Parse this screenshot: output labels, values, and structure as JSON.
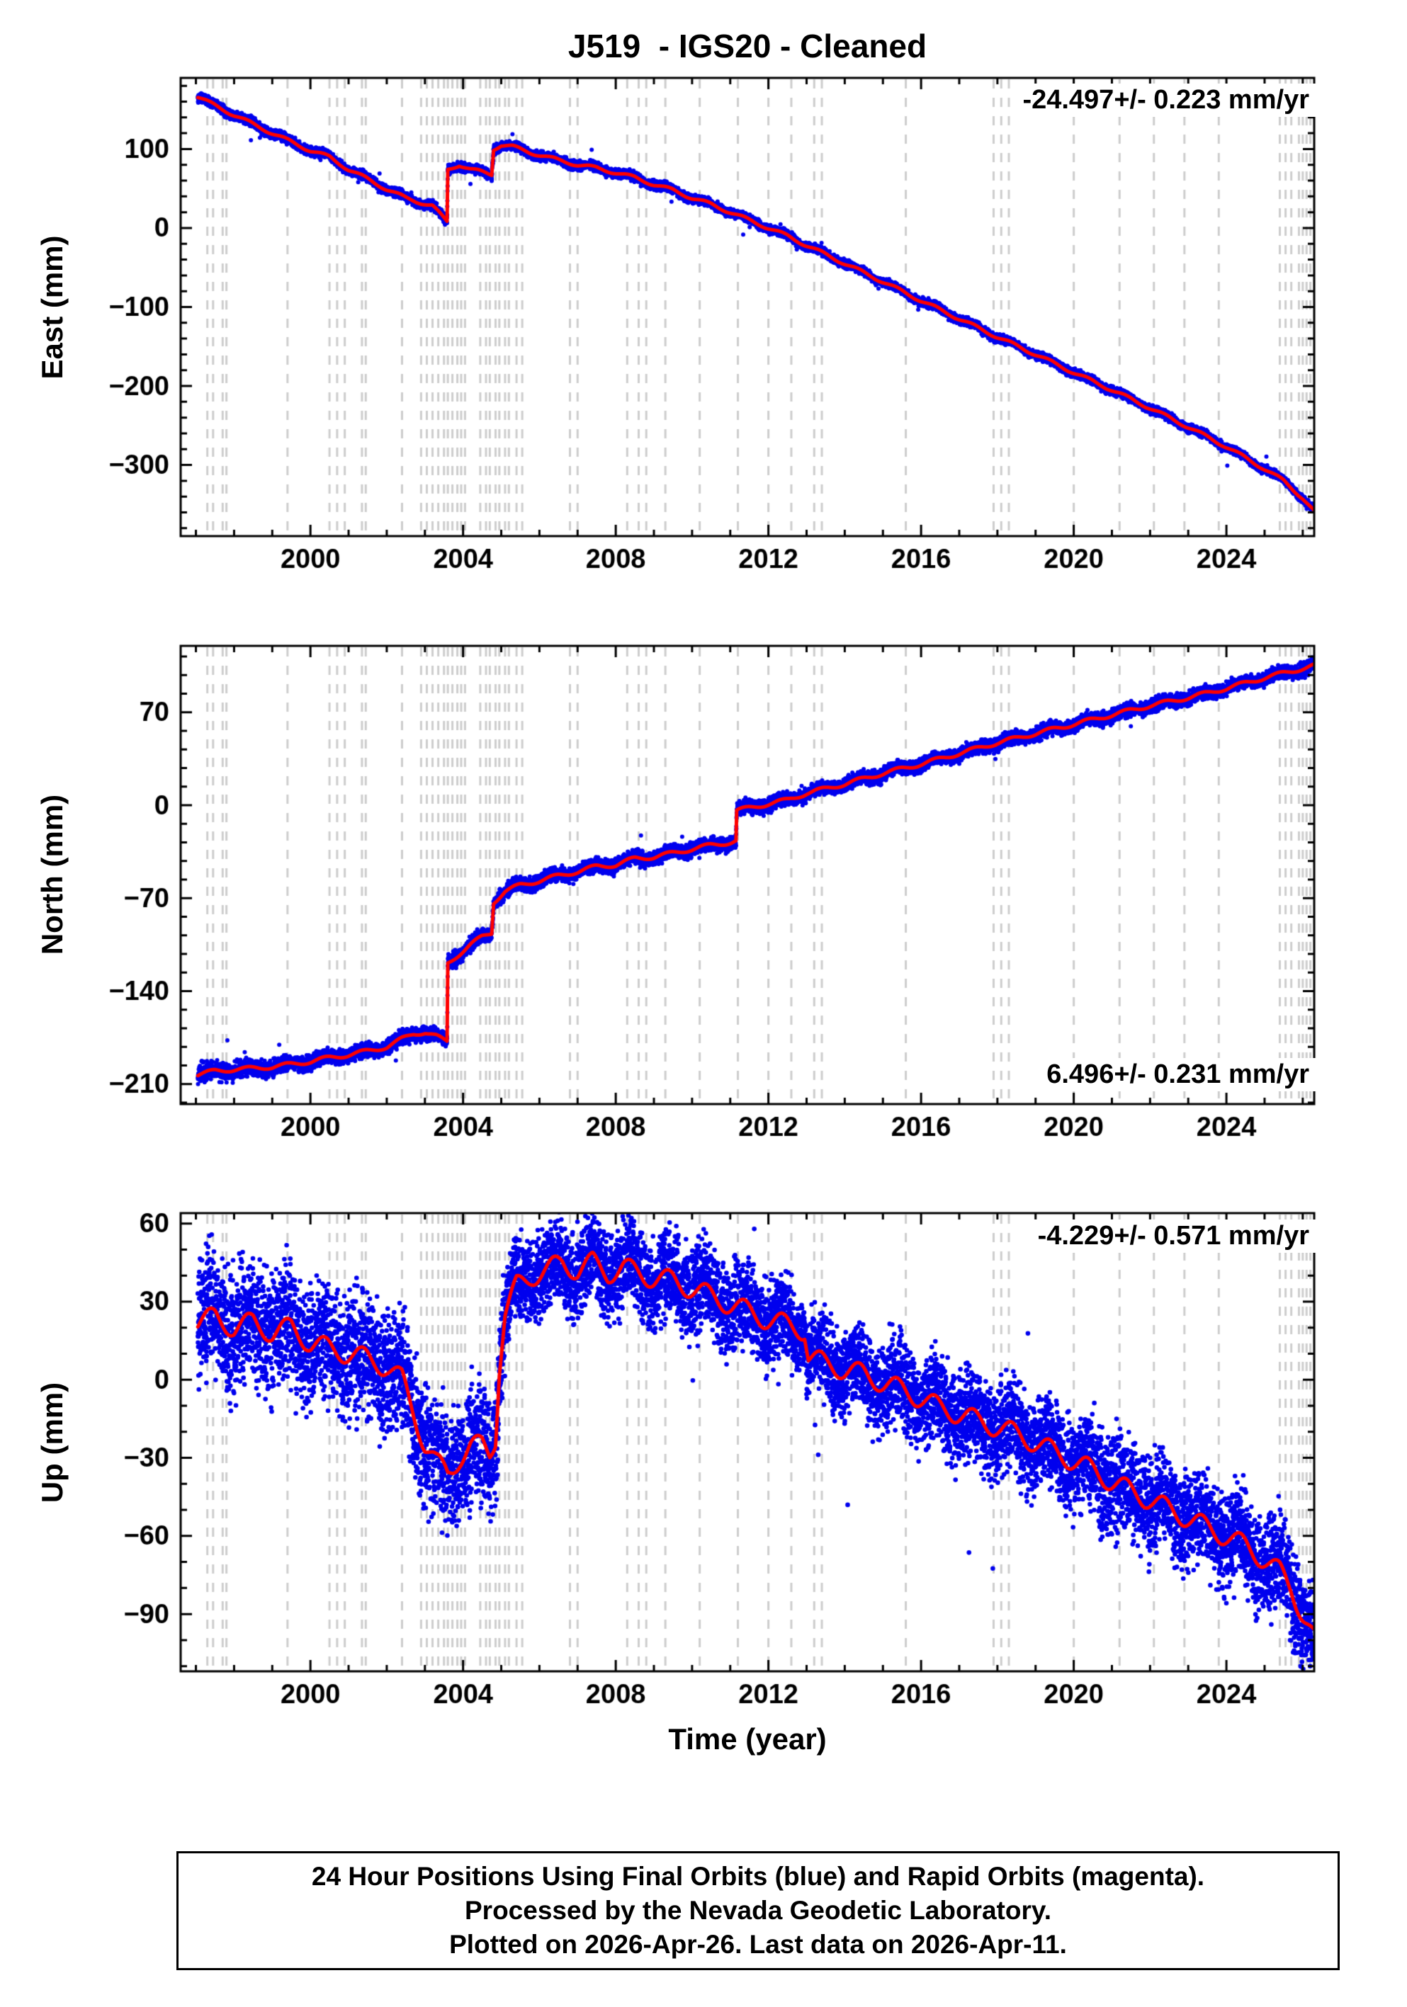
{
  "title": "J519  - IGS20 - Cleaned",
  "xlabel": "Time (year)",
  "caption": {
    "line1": "24 Hour Positions Using Final Orbits (blue) and Rapid Orbits (magenta).",
    "line2": "Processed by the Nevada Geodetic Laboratory.",
    "line3": "Plotted on 2026-Apr-26. Last data on 2026-Apr-11."
  },
  "colors": {
    "final_orbit_dots": "#0000ee",
    "trend_line": "#ff0000",
    "event_lines": "#cdcdcd",
    "frame": "#000000",
    "background": "#ffffff"
  },
  "event_years": [
    1997.3,
    1997.45,
    1997.7,
    1997.8,
    1999.4,
    2000.5,
    2000.7,
    2000.9,
    2001.35,
    2001.45,
    2002.4,
    2002.9,
    2003.05,
    2003.2,
    2003.35,
    2003.5,
    2003.6,
    2003.72,
    2003.85,
    2003.95,
    2004.05,
    2004.45,
    2004.6,
    2004.7,
    2004.85,
    2004.95,
    2005.1,
    2005.2,
    2005.4,
    2005.55,
    2006.8,
    2007.0,
    2008.3,
    2008.6,
    2008.8,
    2009.3,
    2010.2,
    2011.2,
    2012.0,
    2012.6,
    2013.2,
    2013.4,
    2015.6,
    2017.9,
    2018.1,
    2018.3,
    2020.0,
    2021.2,
    2022.1,
    2022.9,
    2023.8,
    2025.4,
    2025.55,
    2025.7,
    2025.9,
    2026.0,
    2026.1,
    2026.2
  ],
  "chart_data": [
    {
      "type": "scatter",
      "component": "East",
      "ylabel": "East (mm)",
      "rate_label": "-24.497+/- 0.223 mm/yr",
      "rate_label_position": "top-right",
      "xlim": [
        1996.6,
        2026.3
      ],
      "ylim": [
        -390,
        190
      ],
      "xticks": [
        2000,
        2004,
        2008,
        2012,
        2016,
        2020,
        2024
      ],
      "x_minor_step": 1,
      "yticks": [
        100,
        0,
        -100,
        -200,
        -300
      ],
      "y_minor_step": 20,
      "data_start": 1997.05,
      "data_end": 2026.28,
      "seasonal_amp": 2.0,
      "dot_radius": 3.0,
      "seed": 101,
      "noise_profile": [
        [
          1997,
          3.2
        ],
        [
          2000,
          2.8
        ],
        [
          2026.3,
          2.6
        ]
      ],
      "trend_anchors": [
        [
          1997.05,
          166
        ],
        [
          1998.0,
          143
        ],
        [
          1999.0,
          120
        ],
        [
          2000.0,
          98
        ],
        [
          2000.5,
          90
        ],
        [
          2001.0,
          74
        ],
        [
          2001.5,
          62
        ],
        [
          2002.0,
          49
        ],
        [
          2002.5,
          38
        ],
        [
          2002.9,
          32
        ],
        [
          2003.2,
          28
        ],
        [
          2003.5,
          12
        ],
        [
          2003.58,
          8
        ],
        [
          2003.6,
          74
        ],
        [
          2003.9,
          80
        ],
        [
          2004.2,
          74
        ],
        [
          2004.5,
          71
        ],
        [
          2004.75,
          68
        ],
        [
          2004.8,
          100
        ],
        [
          2005.0,
          105
        ],
        [
          2005.3,
          103
        ],
        [
          2005.8,
          95
        ],
        [
          2006.5,
          86
        ],
        [
          2007.0,
          80
        ],
        [
          2007.5,
          76
        ],
        [
          2008.0,
          70
        ],
        [
          2008.5,
          64
        ],
        [
          2009.0,
          55
        ],
        [
          2009.5,
          48
        ],
        [
          2010.0,
          38
        ],
        [
          2010.5,
          30
        ],
        [
          2011.0,
          20
        ],
        [
          2011.5,
          10
        ],
        [
          2012.0,
          0
        ],
        [
          2012.5,
          -10
        ],
        [
          2013.0,
          -22
        ],
        [
          2014.0,
          -45
        ],
        [
          2015.0,
          -68
        ],
        [
          2016.0,
          -92
        ],
        [
          2017.0,
          -115
        ],
        [
          2018.0,
          -138
        ],
        [
          2019.0,
          -160
        ],
        [
          2020.0,
          -183
        ],
        [
          2021.0,
          -205
        ],
        [
          2022.0,
          -228
        ],
        [
          2023.0,
          -252
        ],
        [
          2024.0,
          -277
        ],
        [
          2025.0,
          -305
        ],
        [
          2025.5,
          -320
        ],
        [
          2026.0,
          -342
        ],
        [
          2026.28,
          -358
        ]
      ]
    },
    {
      "type": "scatter",
      "component": "North",
      "ylabel": "North (mm)",
      "rate_label": "6.496+/- 0.231 mm/yr",
      "rate_label_position": "bottom-right",
      "xlim": [
        1996.6,
        2026.3
      ],
      "ylim": [
        -225,
        120
      ],
      "xticks": [
        2000,
        2004,
        2008,
        2012,
        2016,
        2020,
        2024
      ],
      "x_minor_step": 1,
      "yticks": [
        70,
        0,
        -70,
        -140,
        -210
      ],
      "y_minor_step": 14,
      "data_start": 1997.05,
      "data_end": 2026.28,
      "seasonal_amp": 1.5,
      "dot_radius": 3.0,
      "seed": 202,
      "noise_profile": [
        [
          1997,
          3.5
        ],
        [
          2000,
          2.6
        ],
        [
          2026.3,
          2.4
        ]
      ],
      "trend_anchors": [
        [
          1997.05,
          -203
        ],
        [
          1997.5,
          -200
        ],
        [
          1998.0,
          -199
        ],
        [
          1999.0,
          -197
        ],
        [
          2000.0,
          -193
        ],
        [
          2000.5,
          -190
        ],
        [
          2001.0,
          -188
        ],
        [
          2001.5,
          -185
        ],
        [
          2002.0,
          -182
        ],
        [
          2002.4,
          -176
        ],
        [
          2002.7,
          -172
        ],
        [
          2003.0,
          -171
        ],
        [
          2003.3,
          -174
        ],
        [
          2003.5,
          -177
        ],
        [
          2003.58,
          -178
        ],
        [
          2003.6,
          -119
        ],
        [
          2003.9,
          -112
        ],
        [
          2004.2,
          -105
        ],
        [
          2004.5,
          -99
        ],
        [
          2004.75,
          -96
        ],
        [
          2004.8,
          -73
        ],
        [
          2005.1,
          -65
        ],
        [
          2005.5,
          -60
        ],
        [
          2006.0,
          -57
        ],
        [
          2006.5,
          -53
        ],
        [
          2007.0,
          -50
        ],
        [
          2007.5,
          -46
        ],
        [
          2008.0,
          -45
        ],
        [
          2008.5,
          -40
        ],
        [
          2009.0,
          -39
        ],
        [
          2009.5,
          -36
        ],
        [
          2010.0,
          -33
        ],
        [
          2010.5,
          -30
        ],
        [
          2011.0,
          -28
        ],
        [
          2011.15,
          -27
        ],
        [
          2011.17,
          -4
        ],
        [
          2011.5,
          -2
        ],
        [
          2012.0,
          1
        ],
        [
          2012.5,
          4
        ],
        [
          2013.0,
          9
        ],
        [
          2014.0,
          16
        ],
        [
          2015.0,
          24
        ],
        [
          2016.0,
          31
        ],
        [
          2017.0,
          39
        ],
        [
          2018.0,
          47
        ],
        [
          2019.0,
          54
        ],
        [
          2020.0,
          61
        ],
        [
          2021.0,
          68
        ],
        [
          2022.0,
          75
        ],
        [
          2023.0,
          81
        ],
        [
          2024.0,
          88
        ],
        [
          2025.0,
          96
        ],
        [
          2026.0,
          103
        ],
        [
          2026.28,
          105
        ]
      ]
    },
    {
      "type": "scatter",
      "component": "Up",
      "ylabel": "Up (mm)",
      "rate_label": "-4.229+/- 0.571 mm/yr",
      "rate_label_position": "top-right",
      "xlim": [
        1996.6,
        2026.3
      ],
      "ylim": [
        -112,
        64
      ],
      "xticks": [
        2000,
        2004,
        2008,
        2012,
        2016,
        2020,
        2024
      ],
      "x_minor_step": 1,
      "yticks": [
        60,
        30,
        0,
        -30,
        -60,
        -90
      ],
      "y_minor_step": 10,
      "data_start": 1997.05,
      "data_end": 2026.28,
      "seasonal_amp": 4.0,
      "dot_radius": 3.3,
      "seed": 303,
      "noise_profile": [
        [
          1997,
          11
        ],
        [
          2004.8,
          11
        ],
        [
          2005.2,
          8
        ],
        [
          2012,
          8
        ],
        [
          2015,
          8
        ],
        [
          2020,
          9
        ],
        [
          2026.3,
          9
        ]
      ],
      "trend_anchors": [
        [
          1997.05,
          22
        ],
        [
          1997.5,
          24
        ],
        [
          1998.0,
          20
        ],
        [
          1998.5,
          22
        ],
        [
          1999.0,
          18
        ],
        [
          1999.5,
          20
        ],
        [
          2000.0,
          14
        ],
        [
          2000.5,
          12
        ],
        [
          2001.0,
          10
        ],
        [
          2001.5,
          8
        ],
        [
          2002.0,
          5
        ],
        [
          2002.4,
          0
        ],
        [
          2002.7,
          -12
        ],
        [
          2003.0,
          -25
        ],
        [
          2003.3,
          -32
        ],
        [
          2003.6,
          -36
        ],
        [
          2003.9,
          -30
        ],
        [
          2004.2,
          -26
        ],
        [
          2004.5,
          -25
        ],
        [
          2004.7,
          -28
        ],
        [
          2004.85,
          -22
        ],
        [
          2004.95,
          5
        ],
        [
          2005.1,
          25
        ],
        [
          2005.4,
          36
        ],
        [
          2005.8,
          40
        ],
        [
          2006.2,
          42
        ],
        [
          2006.6,
          45
        ],
        [
          2007.0,
          42
        ],
        [
          2007.4,
          45
        ],
        [
          2007.8,
          41
        ],
        [
          2008.2,
          43
        ],
        [
          2008.6,
          41
        ],
        [
          2009.0,
          39
        ],
        [
          2009.5,
          38
        ],
        [
          2010.0,
          35
        ],
        [
          2010.5,
          32
        ],
        [
          2011.0,
          29
        ],
        [
          2011.5,
          26
        ],
        [
          2012.0,
          23
        ],
        [
          2012.5,
          21
        ],
        [
          2012.95,
          19
        ],
        [
          2013.05,
          9
        ],
        [
          2013.5,
          6
        ],
        [
          2014.0,
          4
        ],
        [
          2014.5,
          2
        ],
        [
          2015.0,
          -1
        ],
        [
          2015.5,
          -4
        ],
        [
          2016.0,
          -7
        ],
        [
          2016.5,
          -11
        ],
        [
          2017.0,
          -13
        ],
        [
          2017.5,
          -16
        ],
        [
          2018.0,
          -18
        ],
        [
          2018.5,
          -21
        ],
        [
          2019.0,
          -24
        ],
        [
          2019.5,
          -28
        ],
        [
          2020.0,
          -31
        ],
        [
          2020.5,
          -35
        ],
        [
          2021.0,
          -39
        ],
        [
          2021.5,
          -43
        ],
        [
          2022.0,
          -46
        ],
        [
          2022.5,
          -50
        ],
        [
          2023.0,
          -53
        ],
        [
          2023.5,
          -57
        ],
        [
          2024.0,
          -60
        ],
        [
          2024.5,
          -64
        ],
        [
          2025.0,
          -69
        ],
        [
          2025.4,
          -74
        ],
        [
          2025.7,
          -80
        ],
        [
          2026.0,
          -90
        ],
        [
          2026.28,
          -99
        ]
      ]
    }
  ]
}
